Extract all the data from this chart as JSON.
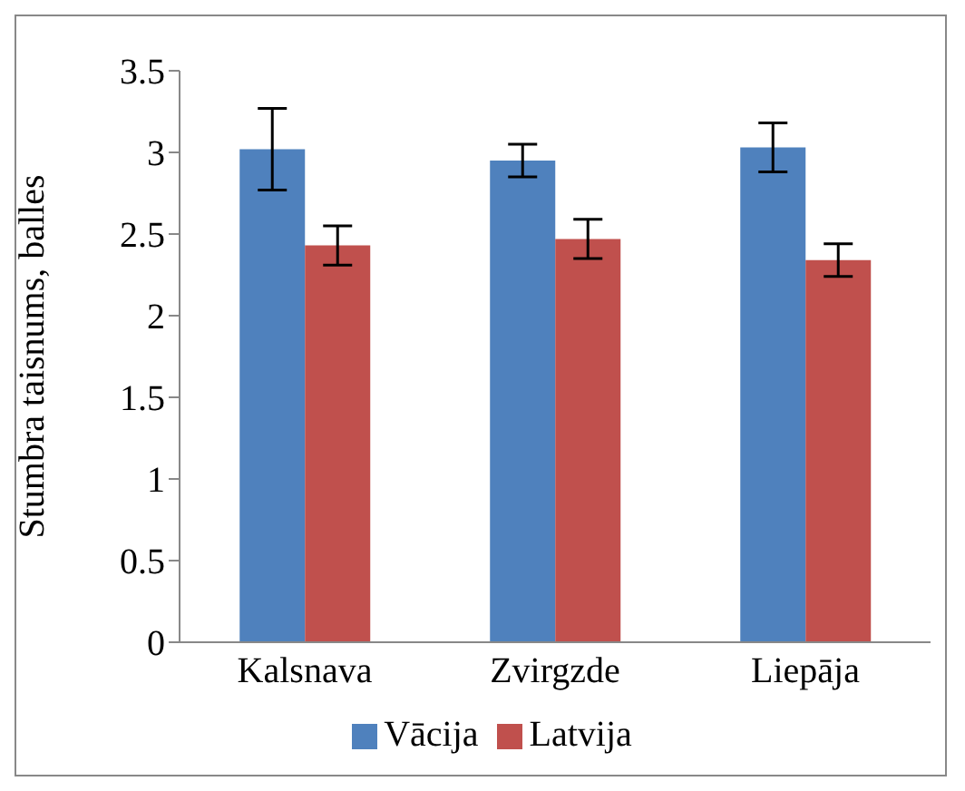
{
  "chart_data": {
    "type": "bar",
    "ylabel": "Stumbra taisnums, balles",
    "categories": [
      "Kalsnava",
      "Zvirgzde",
      "Liepāja"
    ],
    "series": [
      {
        "name": "Vācija",
        "color": "#4f81bd",
        "values": [
          3.02,
          2.95,
          3.03
        ],
        "errors": [
          0.25,
          0.1,
          0.15
        ]
      },
      {
        "name": "Latvija",
        "color": "#c0504d",
        "values": [
          2.43,
          2.47,
          2.34
        ],
        "errors": [
          0.12,
          0.12,
          0.1
        ]
      }
    ],
    "ylim": [
      0,
      3.5
    ],
    "yticks": [
      0,
      0.5,
      1,
      1.5,
      2,
      2.5,
      3,
      3.5
    ],
    "grid": false,
    "legend": "bottom"
  }
}
